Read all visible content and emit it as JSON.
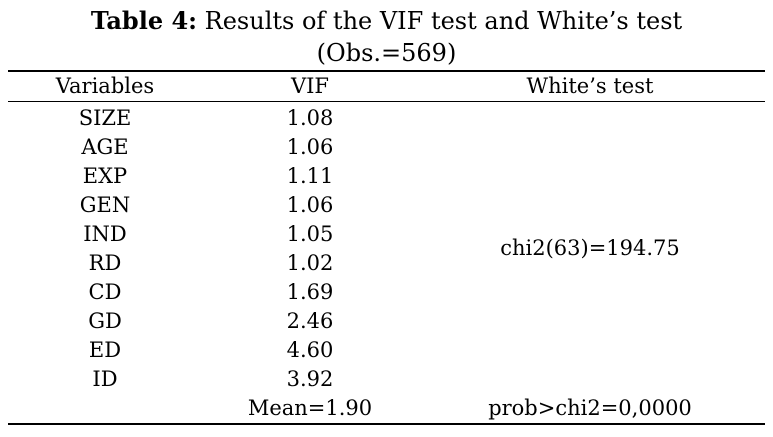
{
  "table": {
    "title_prefix": "Table 4:",
    "title_text": " Results of the VIF test and White’s test",
    "title_line2": "(Obs.=569)",
    "headers": {
      "variables": "Variables",
      "vif": "VIF",
      "white": "White’s test"
    },
    "rows": [
      {
        "variable": "SIZE",
        "vif": "1.08"
      },
      {
        "variable": "AGE",
        "vif": "1.06"
      },
      {
        "variable": "EXP",
        "vif": "1.11"
      },
      {
        "variable": "GEN",
        "vif": "1.06"
      },
      {
        "variable": "IND",
        "vif": "1.05"
      },
      {
        "variable": "RD",
        "vif": "1.02"
      },
      {
        "variable": "CD",
        "vif": "1.69"
      },
      {
        "variable": "GD",
        "vif": "2.46"
      },
      {
        "variable": "ED",
        "vif": "4.60"
      },
      {
        "variable": "ID",
        "vif": "3.92"
      }
    ],
    "vif_mean": "Mean=1.90",
    "white_chi2": "chi2(63)=194.75",
    "white_prob": "prob>chi2=0,0000"
  }
}
